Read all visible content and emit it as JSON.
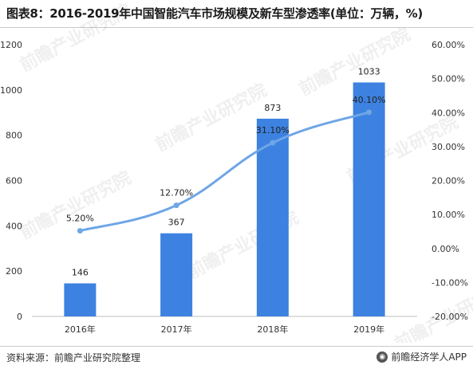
{
  "header": {
    "title": "图表8：2016-2019年中国智能汽车市场规模及新车型渗透率(单位：万辆，%)"
  },
  "footer": {
    "source": "资料来源：前瞻产业研究院整理",
    "brand": "前瞻经济学人APP"
  },
  "watermark": {
    "text": "前瞻产业研究院"
  },
  "colors": {
    "bar": "#3d82e0",
    "line": "#6fa6e6",
    "axis": "#bfbfbf"
  },
  "chart_data": {
    "type": "bar",
    "categories": [
      "2016年",
      "2017年",
      "2018年",
      "2019年"
    ],
    "series": [
      {
        "type": "bar",
        "axis": "left",
        "values": [
          146,
          367,
          873,
          1033
        ],
        "labels": [
          "146",
          "367",
          "873",
          "1033"
        ]
      },
      {
        "type": "line",
        "axis": "right",
        "values": [
          5.2,
          12.7,
          31.1,
          40.1
        ],
        "labels": [
          "5.20%",
          "12.70%",
          "31.10%",
          "40.10%"
        ]
      }
    ],
    "y_left": {
      "min": 0,
      "max": 1200,
      "ticks": [
        "0",
        "200",
        "400",
        "600",
        "800",
        "1000",
        "1200"
      ]
    },
    "y_right": {
      "min": -20,
      "max": 60,
      "ticks": [
        "-20.00%",
        "-10.00%",
        "0.00%",
        "10.00%",
        "20.00%",
        "30.00%",
        "40.00%",
        "50.00%",
        "60.00%"
      ]
    },
    "grid": false
  }
}
